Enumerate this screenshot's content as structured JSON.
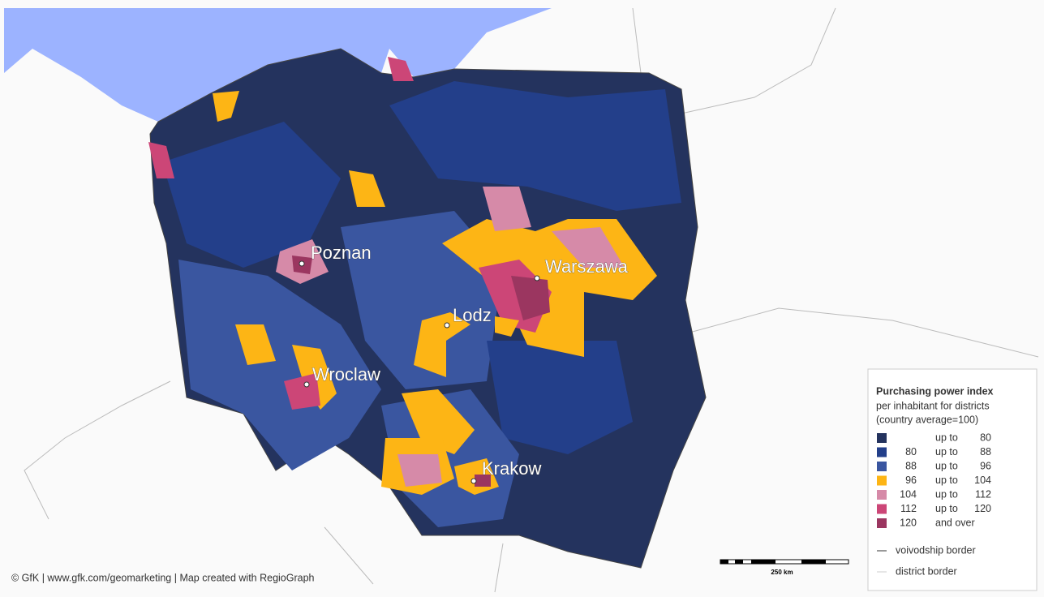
{
  "map": {
    "cities": [
      {
        "name": "Poznan"
      },
      {
        "name": "Warszawa"
      },
      {
        "name": "Lodz"
      },
      {
        "name": "Wroclaw"
      },
      {
        "name": "Krakow"
      }
    ],
    "legend": {
      "title": "Purchasing power index",
      "subtitle_lines": [
        "per inhabitant for districts",
        "(country average=100)"
      ],
      "classes": [
        {
          "color": "#24335e",
          "connector": "up to",
          "to": 80
        },
        {
          "color": "#233f8a",
          "from": 80,
          "connector": "up to",
          "to": 88
        },
        {
          "color": "#3a56a0",
          "from": 88,
          "connector": "up to",
          "to": 96
        },
        {
          "color": "#fdb515",
          "from": 96,
          "connector": "up to",
          "to": 104
        },
        {
          "color": "#d68aa8",
          "from": 104,
          "connector": "up to",
          "to": 112
        },
        {
          "color": "#cc4677",
          "from": 112,
          "connector": "up to",
          "to": 120
        },
        {
          "color": "#9b3660",
          "from": 120,
          "connector": "and over"
        }
      ],
      "borders": [
        "voivodship border",
        "district border"
      ]
    },
    "scale_label": "250 km",
    "credit": "© GfK | www.gfk.com/geomarketing | Map created with RegioGraph"
  }
}
